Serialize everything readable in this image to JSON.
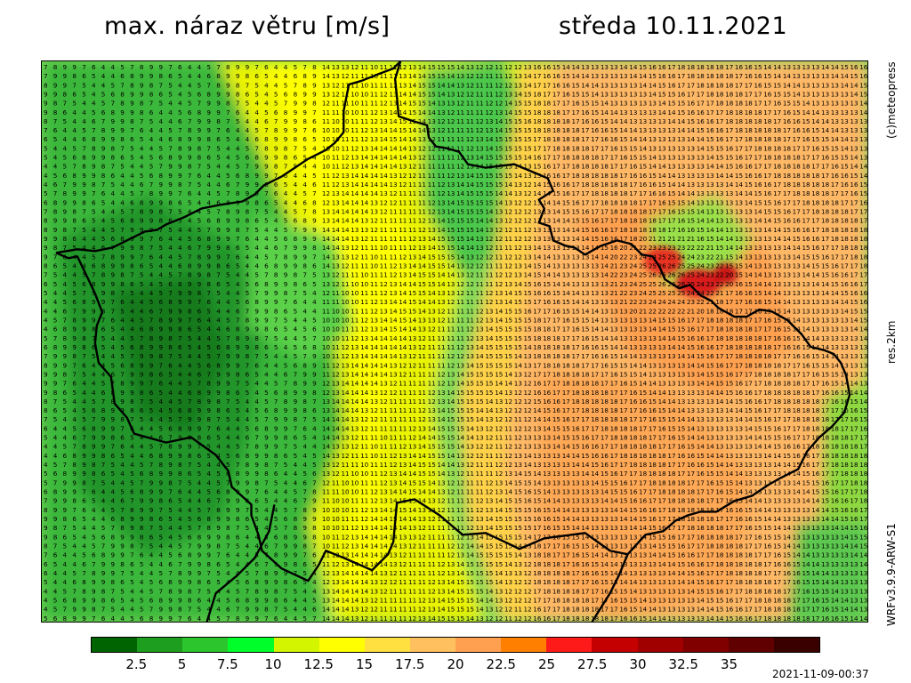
{
  "header": {
    "title": "max. náraz větru [m/s]",
    "date": "středa 10.11.2021"
  },
  "side_labels": {
    "credit": "(c)meteopress",
    "resolution": "res.2km",
    "model": "WRFv3.9.9-ARW-S1"
  },
  "map": {
    "quantity": "maximum wind gust",
    "unit": "m/s",
    "colors": {
      "low": "#1a7a1a",
      "mid": "#ffff00",
      "high": "#ff9a55",
      "peak": "#e00000",
      "border": "#000000"
    },
    "typical_ranges": {
      "west_bohemia": [
        4,
        9
      ],
      "central_moravia": [
        13,
        18
      ],
      "southeast_peak": [
        20,
        26
      ]
    }
  },
  "legend": {
    "colors": [
      "#006400",
      "#1e9e1e",
      "#2dc52d",
      "#00ff2a",
      "#d4f500",
      "#ffff00",
      "#ffe040",
      "#ffc060",
      "#ffa050",
      "#ff8000",
      "#ff1a1a",
      "#c40000",
      "#a00000",
      "#800000",
      "#600000",
      "#3a0000"
    ],
    "ticks": [
      "2.5",
      "5",
      "7.5",
      "10",
      "12.5",
      "15",
      "17.5",
      "20",
      "22.5",
      "25",
      "27.5",
      "30",
      "32.5",
      "35"
    ]
  },
  "footer": {
    "timestamp": "2021-11-09-00:37"
  }
}
